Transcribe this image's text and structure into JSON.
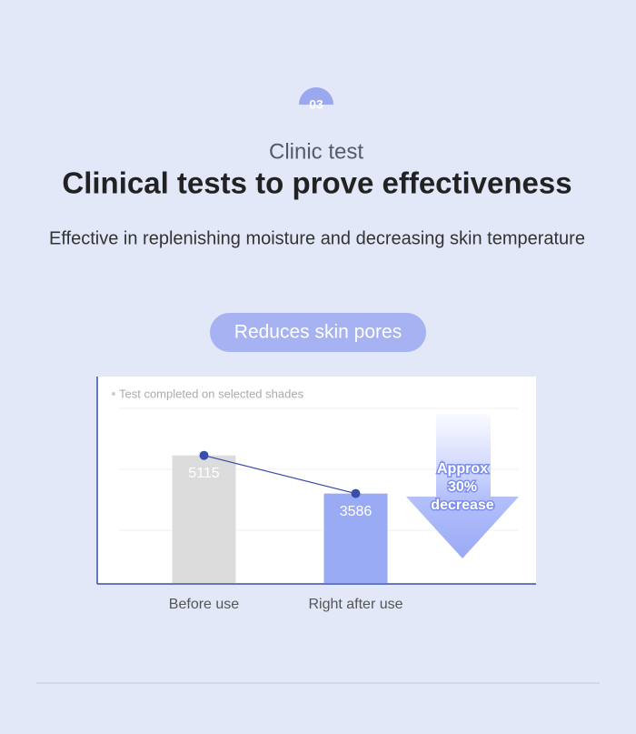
{
  "badge": "03",
  "subtitle": "Clinic test",
  "title": "Clinical tests to prove effectiveness",
  "description": "Effective in replenishing moisture and decreasing skin temperature",
  "pill": "Reduces skin pores",
  "chart_data": {
    "type": "bar",
    "note": "Test completed on selected shades",
    "categories": [
      "Before use",
      "Right after use"
    ],
    "values": [
      5115,
      3586
    ],
    "colors": [
      "#dcdcdc",
      "#9aabf5"
    ],
    "line_color": "#3a4faa",
    "ylim": [
      0,
      7000
    ],
    "annotation": [
      "Approx",
      "30%",
      "decrease"
    ]
  }
}
